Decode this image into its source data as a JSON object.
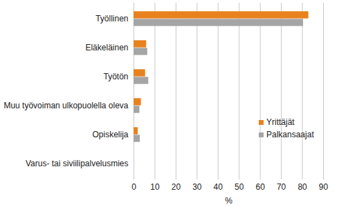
{
  "chart_data": {
    "type": "bar",
    "orientation": "horizontal",
    "categories": [
      "Työllinen",
      "Eläkeläinen",
      "Työtön",
      "Muu työvoiman ulkopuolella oleva",
      "Opiskelija",
      "Varus- tai siviilipalvelusmies"
    ],
    "series": [
      {
        "name": "Yrittäjät",
        "color": "#E8821E",
        "values": [
          83,
          6,
          5.5,
          3.5,
          2,
          0
        ]
      },
      {
        "name": "Palkansaajat",
        "color": "#A5A5A5",
        "values": [
          80.5,
          6.5,
          7,
          2.8,
          3,
          0
        ]
      }
    ],
    "xlabel": "%",
    "xlim": [
      0,
      90
    ],
    "xticks": [
      0,
      10,
      20,
      30,
      40,
      50,
      60,
      70,
      80,
      90
    ],
    "grid": true,
    "legend": "right"
  }
}
